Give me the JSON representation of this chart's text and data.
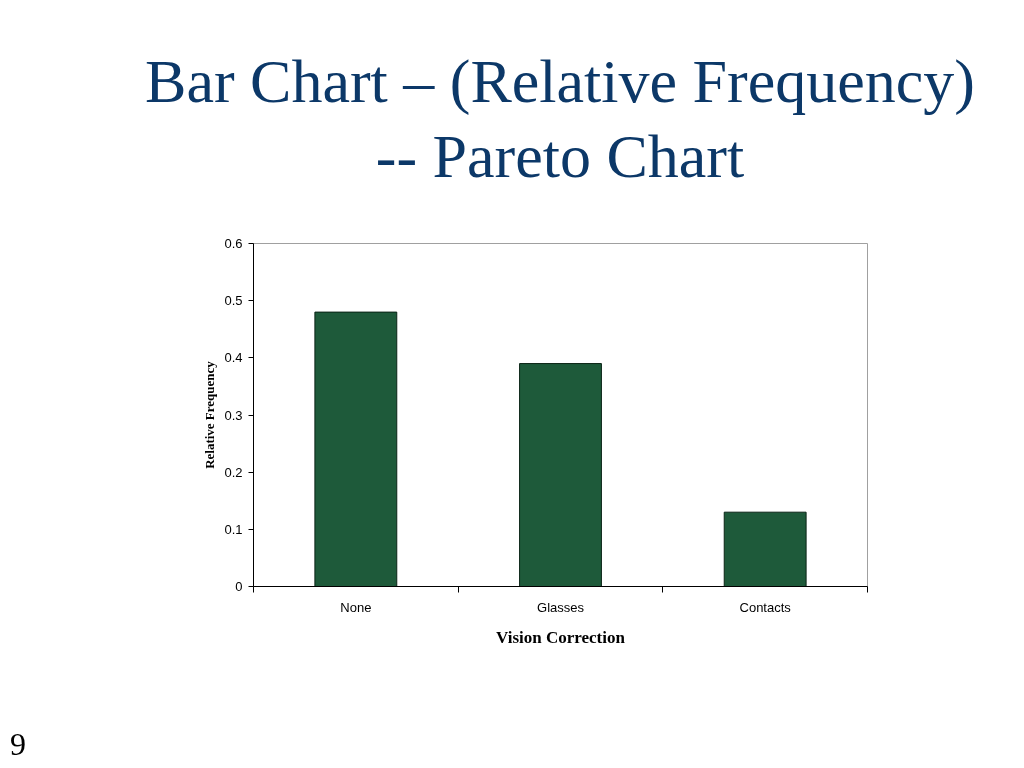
{
  "chart_data": {
    "type": "bar",
    "title": "Bar Chart – (Relative Frequency)\n-- Pareto Chart",
    "xlabel": "Vision Correction",
    "ylabel": "Relative Frequency",
    "categories": [
      "None",
      "Glasses",
      "Contacts"
    ],
    "values": [
      0.48,
      0.39,
      0.13
    ],
    "color": "#1e5a3a",
    "ylim": [
      0,
      0.6
    ],
    "yticks": [
      0,
      0.1,
      0.2,
      0.3,
      0.4,
      0.5,
      0.6
    ],
    "grid": false,
    "annotations": [
      "9"
    ]
  }
}
